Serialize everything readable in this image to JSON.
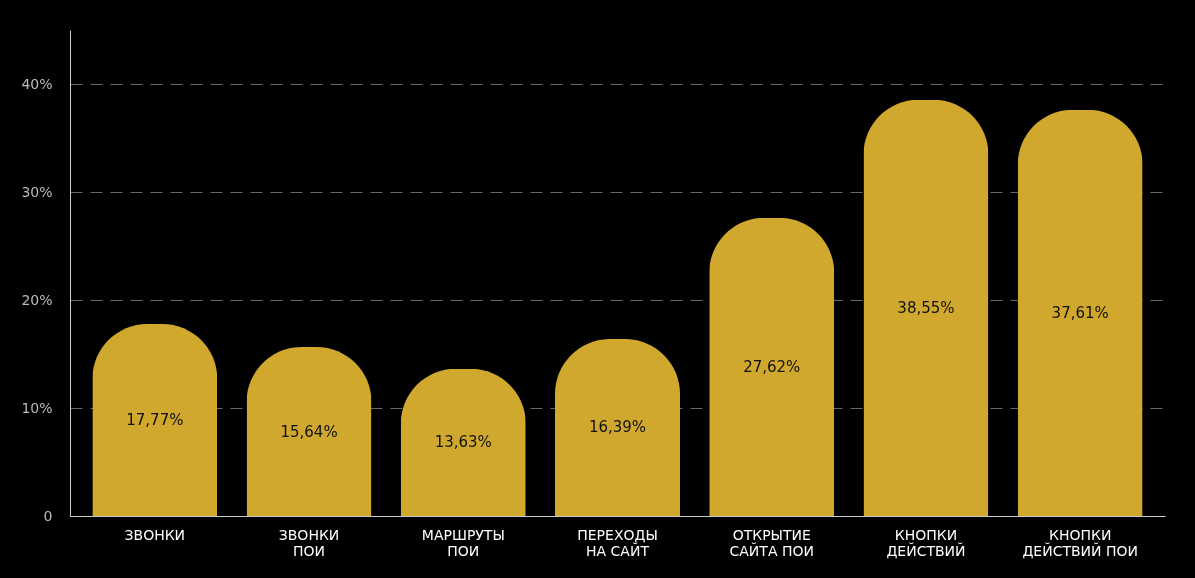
{
  "chart_data": {
    "type": "bar",
    "categories": [
      "ЗВОНКИ",
      "ЗВОНКИ ПОИ",
      "МАРШРУТЫ ПОИ",
      "ПЕРЕХОДЫ НА САЙТ",
      "ОТКРЫТИЕ САЙТА ПОИ",
      "КНОПКИ ДЕЙСТВИЙ",
      "КНОПКИ ДЕЙСТВИЙ ПОИ"
    ],
    "values": [
      17.77,
      15.64,
      13.63,
      16.39,
      27.62,
      38.55,
      37.61
    ],
    "color": "#d0a82e",
    "ylim": [
      0,
      45
    ],
    "yticks": [
      {
        "value": 0,
        "label": "0"
      },
      {
        "value": 10,
        "label": "10%"
      },
      {
        "value": 20,
        "label": "20%"
      },
      {
        "value": 30,
        "label": "30%"
      },
      {
        "value": 40,
        "label": "40%"
      }
    ],
    "value_labels": [
      "17,77%",
      "15,64%",
      "13,63%",
      "16,39%",
      "27,62%",
      "38,55%",
      "37,61%"
    ],
    "grid": "y"
  }
}
